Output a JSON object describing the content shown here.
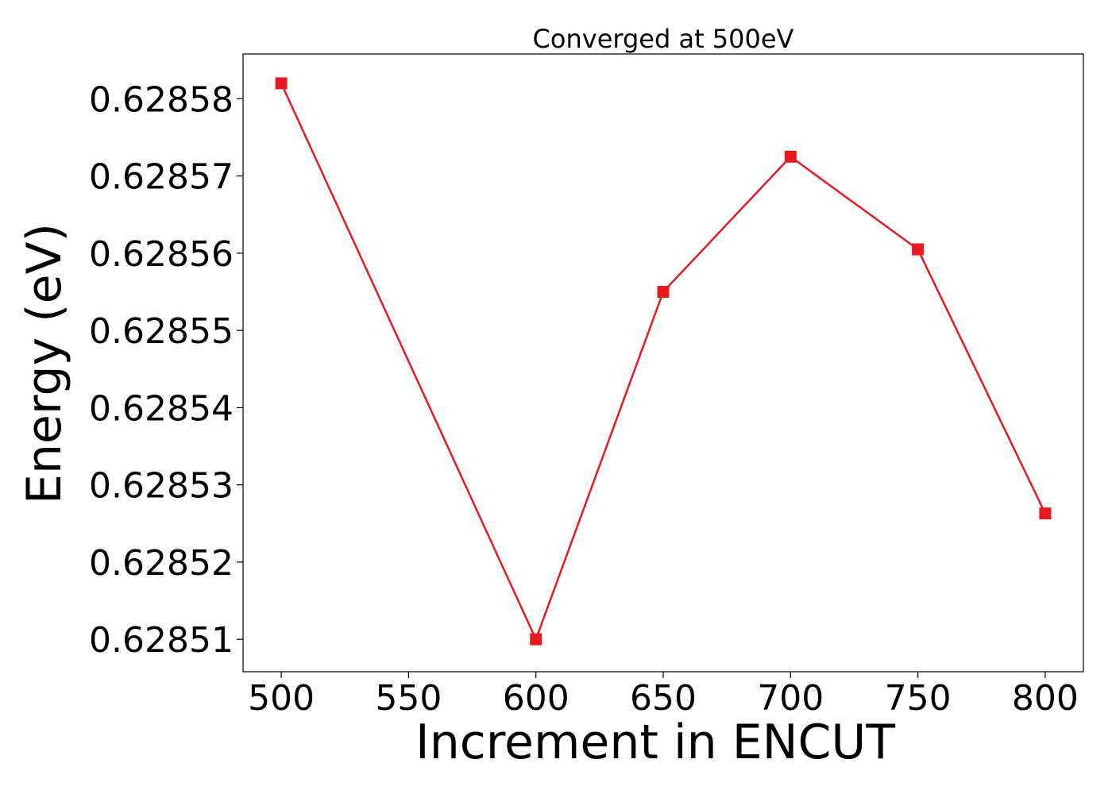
{
  "chart_data": {
    "type": "line",
    "title": "Converged at 500eV",
    "xlabel": "Increment in ENCUT",
    "ylabel": "Energy (eV)",
    "x": [
      500,
      600,
      650,
      700,
      750,
      800
    ],
    "series": [
      {
        "values": [
          0.628582,
          0.62851,
          0.628555,
          0.6285725,
          0.6285605,
          0.6285263
        ],
        "color": "#e8191f",
        "marker": "square"
      }
    ],
    "xticks": [
      500,
      550,
      600,
      650,
      700,
      750,
      800
    ],
    "xtick_labels": [
      "500",
      "550",
      "600",
      "650",
      "700",
      "750",
      "800"
    ],
    "yticks": [
      0.62851,
      0.62852,
      0.62853,
      0.62854,
      0.62855,
      0.62856,
      0.62857,
      0.62858
    ],
    "ytick_labels": [
      "0.62851",
      "0.62852",
      "0.62853",
      "0.62854",
      "0.62855",
      "0.62856",
      "0.62857",
      "0.62858"
    ],
    "xlim": [
      485,
      815
    ],
    "ylim": [
      0.6285058,
      0.6285858
    ],
    "grid": false,
    "legend": "none"
  }
}
